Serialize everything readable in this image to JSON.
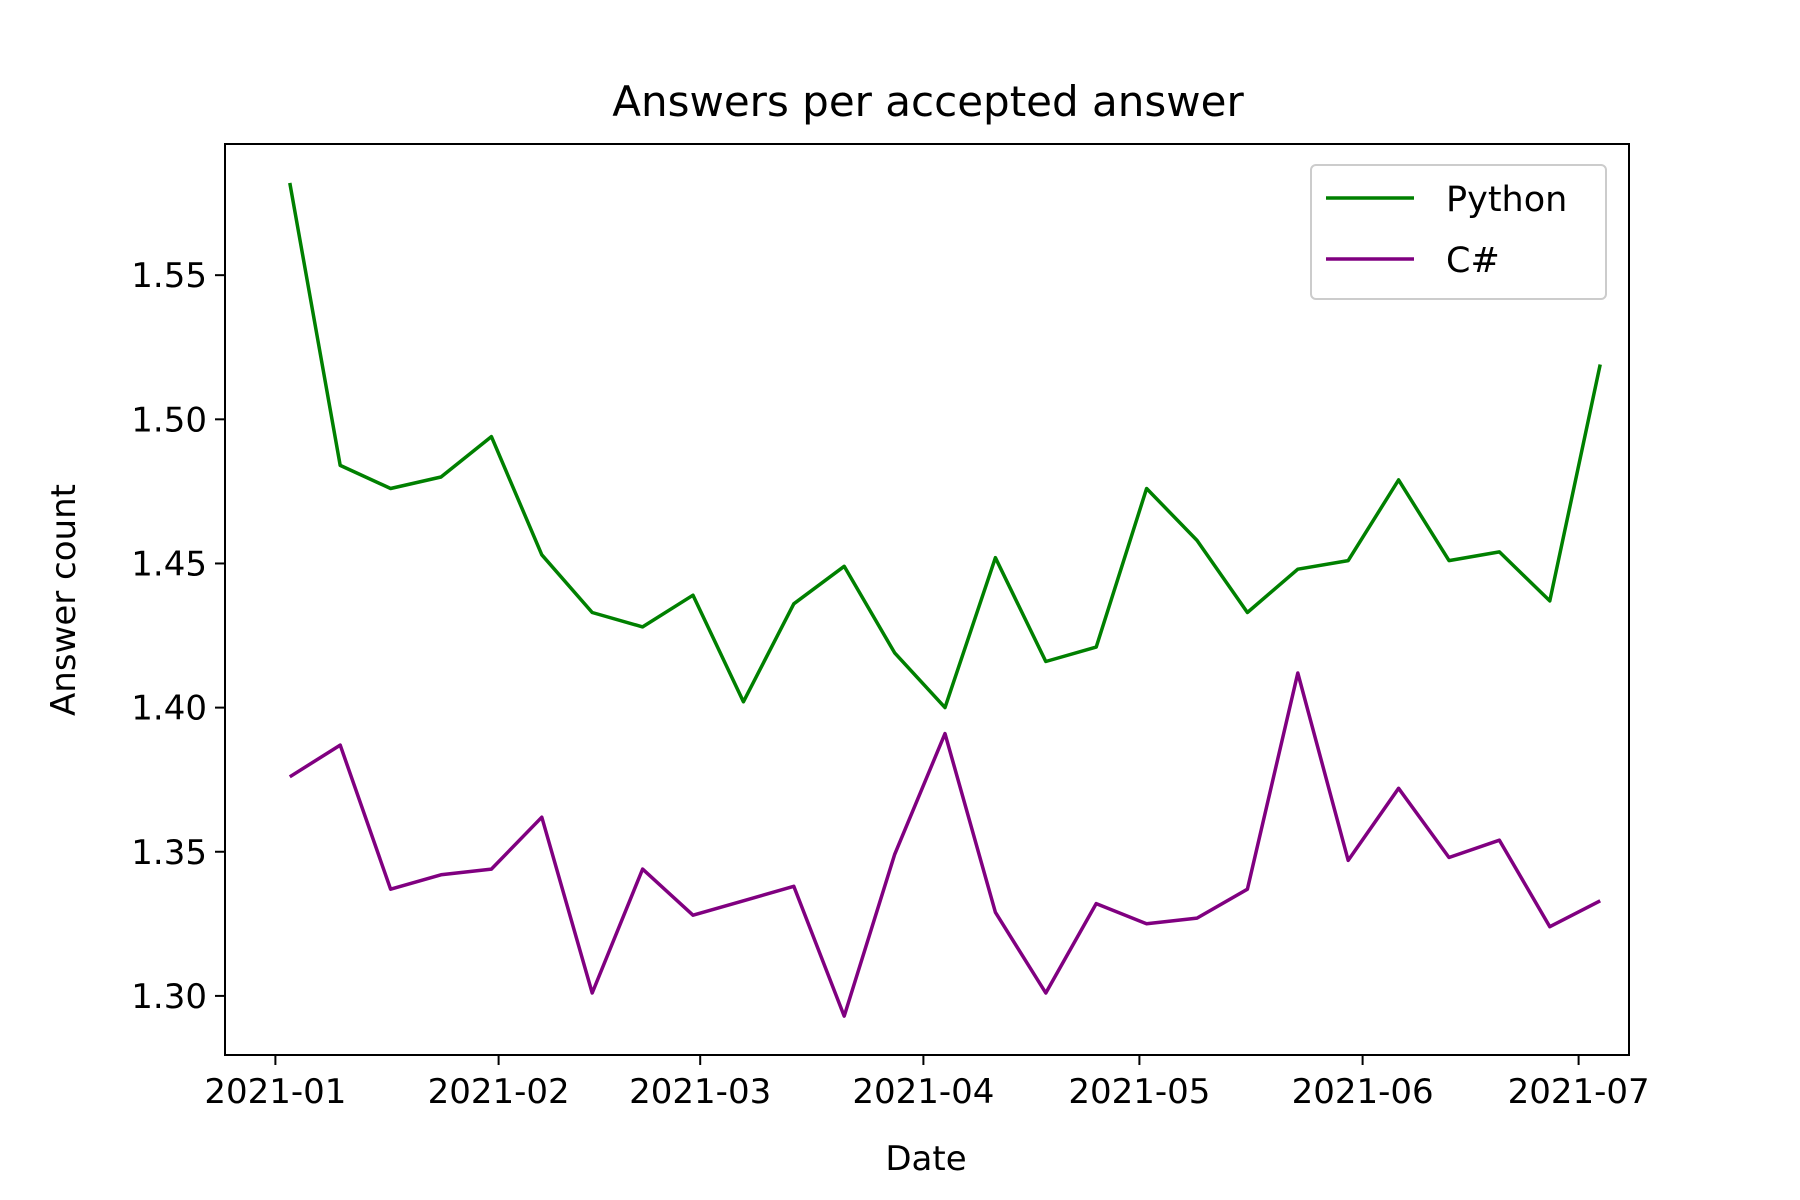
{
  "chart_data": {
    "type": "line",
    "title": "Answers per accepted answer",
    "xlabel": "Date",
    "ylabel": "Answer count",
    "x_ticks": [
      "2021-01",
      "2021-02",
      "2021-03",
      "2021-04",
      "2021-05",
      "2021-06",
      "2021-07"
    ],
    "y_ticks": [
      "1.30",
      "1.35",
      "1.40",
      "1.45",
      "1.50",
      "1.55"
    ],
    "xlim": [
      "2020-12-25",
      "2021-07-08"
    ],
    "ylim": [
      1.2795,
      1.5955
    ],
    "grid": false,
    "legend_position": "top-right",
    "x": [
      "2021-01-03",
      "2021-01-10",
      "2021-01-17",
      "2021-01-24",
      "2021-01-31",
      "2021-02-07",
      "2021-02-14",
      "2021-02-21",
      "2021-02-28",
      "2021-03-07",
      "2021-03-14",
      "2021-03-21",
      "2021-03-28",
      "2021-04-04",
      "2021-04-11",
      "2021-04-18",
      "2021-04-25",
      "2021-05-02",
      "2021-05-09",
      "2021-05-16",
      "2021-05-23",
      "2021-05-30",
      "2021-06-06",
      "2021-06-13",
      "2021-06-20",
      "2021-06-27",
      "2021-07-04"
    ],
    "series": [
      {
        "name": "Python",
        "color": "#008000",
        "values": [
          1.582,
          1.484,
          1.476,
          1.48,
          1.494,
          1.453,
          1.433,
          1.428,
          1.439,
          1.402,
          1.436,
          1.449,
          1.419,
          1.4,
          1.452,
          1.416,
          1.421,
          1.476,
          1.458,
          1.433,
          1.448,
          1.451,
          1.479,
          1.451,
          1.454,
          1.437,
          1.519
        ]
      },
      {
        "name": "C#",
        "color": "#800080",
        "values": [
          1.376,
          1.387,
          1.337,
          1.342,
          1.344,
          1.362,
          1.301,
          1.344,
          1.328,
          1.333,
          1.338,
          1.293,
          1.349,
          1.391,
          1.329,
          1.301,
          1.332,
          1.325,
          1.327,
          1.337,
          1.412,
          1.347,
          1.372,
          1.348,
          1.354,
          1.324,
          1.333
        ]
      }
    ]
  }
}
